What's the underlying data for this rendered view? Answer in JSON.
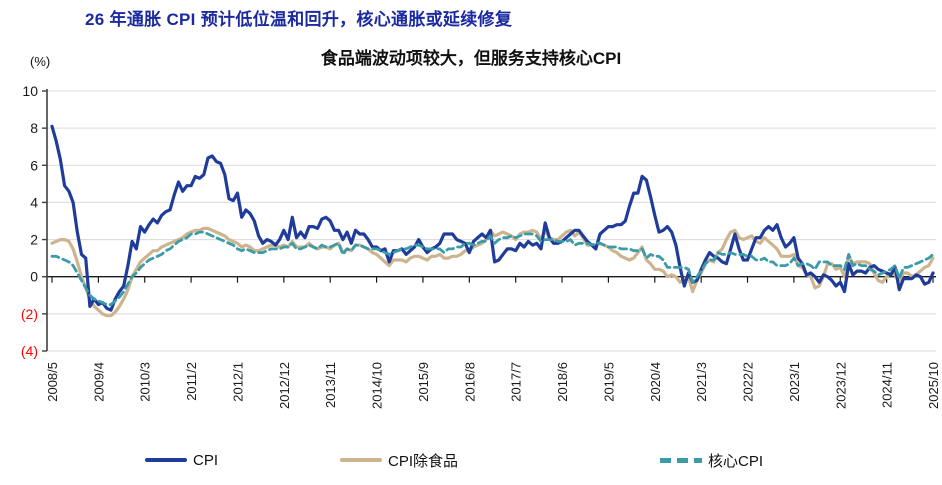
{
  "header": {
    "title": "26 年通胀 CPI 预计低位温和回升，核心通胀或延续修复",
    "title_color": "#1b2aa0"
  },
  "chart": {
    "subtitle": "食品端波动项较大，但服务支持核心CPI",
    "unit_label": "(%)",
    "grid_color": "#d9d9d9",
    "axis_color": "#404040",
    "zero_line_color": "#1a1a1a",
    "negative_label_color": "#ff0000"
  },
  "chart_data": {
    "type": "line",
    "title": "食品端波动项较大，但服务支持核心CPI",
    "xlabel": "",
    "ylabel": "(%)",
    "ylim": [
      -4,
      10
    ],
    "ytick_step": 2,
    "ytick_display": [
      "10",
      "8",
      "6",
      "4",
      "2",
      "0",
      "(2)",
      "(4)"
    ],
    "negative_tick_style": "parentheses-red",
    "grid": "horizontal",
    "legend_position": "bottom",
    "x_frequency": "monthly",
    "x_start": "2008/5",
    "x_end": "2025/10",
    "xtick_labels": [
      "2008/5",
      "2009/4",
      "2010/3",
      "2011/2",
      "2012/1",
      "2012/12",
      "2013/11",
      "2014/10",
      "2015/9",
      "2016/8",
      "2017/7",
      "2018/6",
      "2019/5",
      "2020/4",
      "2021/3",
      "2022/2",
      "2023/1",
      "2023/12",
      "2024/11",
      "2025/10"
    ],
    "xtick_month_indices": [
      0,
      11,
      22,
      33,
      44,
      55,
      66,
      77,
      88,
      99,
      110,
      121,
      132,
      143,
      154,
      165,
      176,
      187,
      198,
      209
    ],
    "series": [
      {
        "name": "CPI",
        "slug": "cpi",
        "color": "#1f3c9b",
        "style": "solid",
        "values": [
          8.1,
          7.3,
          6.3,
          4.9,
          4.6,
          4.0,
          2.4,
          1.2,
          1.0,
          -1.6,
          -1.2,
          -1.5,
          -1.4,
          -1.7,
          -1.8,
          -1.2,
          -0.8,
          -0.5,
          0.6,
          1.9,
          1.5,
          2.7,
          2.4,
          2.8,
          3.1,
          2.9,
          3.3,
          3.5,
          3.6,
          4.4,
          5.1,
          4.6,
          4.9,
          4.9,
          5.4,
          5.3,
          5.5,
          6.4,
          6.5,
          6.2,
          6.1,
          5.5,
          4.2,
          4.1,
          4.5,
          3.2,
          3.6,
          3.4,
          3.0,
          2.2,
          1.8,
          2.0,
          1.9,
          1.7,
          2.0,
          2.5,
          2.0,
          3.2,
          2.1,
          2.4,
          2.1,
          2.7,
          2.7,
          2.6,
          3.1,
          3.2,
          3.0,
          2.5,
          2.5,
          2.0,
          2.4,
          1.8,
          2.5,
          2.3,
          2.3,
          2.0,
          1.6,
          1.6,
          1.4,
          1.5,
          0.8,
          1.4,
          1.4,
          1.5,
          1.2,
          1.4,
          1.6,
          2.0,
          1.6,
          1.3,
          1.5,
          1.6,
          1.8,
          2.3,
          2.3,
          2.3,
          2.0,
          1.9,
          1.8,
          1.3,
          1.9,
          2.1,
          2.3,
          2.1,
          2.5,
          0.8,
          0.9,
          1.2,
          1.5,
          1.5,
          1.4,
          1.8,
          1.6,
          1.9,
          1.7,
          1.8,
          1.5,
          2.9,
          2.1,
          1.8,
          1.8,
          1.9,
          2.1,
          2.3,
          2.5,
          2.5,
          2.2,
          1.9,
          1.7,
          1.5,
          2.3,
          2.5,
          2.7,
          2.7,
          2.8,
          2.8,
          3.0,
          3.8,
          4.5,
          4.5,
          5.4,
          5.2,
          4.3,
          3.3,
          2.4,
          2.5,
          2.7,
          2.4,
          1.7,
          0.5,
          -0.5,
          0.2,
          -0.3,
          -0.2,
          0.4,
          0.9,
          1.3,
          1.1,
          1.0,
          0.8,
          0.7,
          1.5,
          2.3,
          1.5,
          0.9,
          0.9,
          1.5,
          2.1,
          2.1,
          2.5,
          2.7,
          2.5,
          2.8,
          2.1,
          1.6,
          1.8,
          2.1,
          1.0,
          0.7,
          0.1,
          0.2,
          0.0,
          -0.3,
          0.1,
          0.0,
          -0.2,
          -0.5,
          -0.3,
          -0.8,
          0.7,
          0.1,
          0.3,
          0.3,
          0.2,
          0.5,
          0.6,
          0.4,
          0.3,
          0.2,
          0.1,
          0.5,
          -0.7,
          -0.1,
          -0.1,
          -0.1,
          0.1,
          0.0,
          -0.4,
          -0.3,
          0.2
        ]
      },
      {
        "name": "CPI除食品",
        "slug": "cpi-ex-food",
        "color": "#cdb48e",
        "style": "solid",
        "values": [
          1.8,
          1.9,
          2.0,
          2.0,
          1.9,
          1.5,
          0.8,
          0.0,
          -0.6,
          -1.2,
          -1.6,
          -1.8,
          -2.0,
          -2.1,
          -2.1,
          -1.9,
          -1.6,
          -1.2,
          -0.7,
          0.0,
          0.4,
          0.8,
          1.0,
          1.2,
          1.4,
          1.4,
          1.6,
          1.7,
          1.8,
          1.9,
          2.0,
          2.1,
          2.3,
          2.4,
          2.5,
          2.5,
          2.6,
          2.6,
          2.5,
          2.4,
          2.3,
          2.2,
          2.0,
          1.9,
          1.8,
          1.6,
          1.7,
          1.6,
          1.4,
          1.4,
          1.5,
          1.6,
          1.7,
          1.7,
          1.6,
          1.7,
          1.6,
          1.9,
          1.6,
          1.6,
          1.6,
          1.8,
          1.6,
          1.5,
          1.6,
          1.6,
          1.5,
          1.7,
          1.8,
          1.3,
          1.5,
          1.4,
          1.7,
          1.7,
          1.6,
          1.5,
          1.3,
          1.2,
          1.0,
          0.8,
          0.6,
          0.9,
          0.9,
          0.9,
          0.8,
          1.0,
          1.1,
          1.1,
          1.0,
          0.9,
          1.1,
          1.1,
          1.2,
          1.0,
          1.0,
          1.1,
          1.1,
          1.2,
          1.4,
          1.4,
          1.6,
          1.7,
          1.8,
          2.0,
          2.5,
          2.2,
          2.3,
          2.4,
          2.3,
          2.2,
          2.0,
          2.3,
          2.4,
          2.4,
          2.5,
          2.4,
          2.0,
          2.5,
          2.1,
          2.0,
          2.0,
          2.2,
          2.4,
          2.5,
          2.2,
          2.4,
          2.1,
          1.7,
          1.7,
          1.7,
          1.8,
          1.7,
          1.6,
          1.4,
          1.3,
          1.1,
          1.0,
          0.9,
          1.0,
          1.3,
          1.6,
          0.9,
          0.7,
          0.4,
          0.4,
          0.3,
          0.0,
          0.1,
          0.0,
          -0.3,
          -0.1,
          0.0,
          -0.8,
          -0.2,
          0.2,
          0.7,
          0.9,
          0.8,
          1.3,
          1.5,
          2.0,
          2.4,
          2.5,
          2.1,
          2.0,
          2.1,
          2.2,
          1.9,
          1.8,
          2.1,
          1.9,
          1.7,
          1.5,
          1.1,
          1.1,
          1.1,
          1.2,
          0.6,
          0.5,
          0.1,
          0.0,
          -0.6,
          -0.5,
          0.0,
          0.7,
          0.7,
          0.4,
          0.5,
          0.0,
          1.1,
          0.7,
          0.8,
          0.8,
          0.8,
          0.7,
          0.2,
          -0.2,
          -0.3,
          0.0,
          0.2,
          0.1,
          -0.2,
          0.2,
          0.2,
          0.0,
          0.1,
          0.3,
          0.5,
          0.6,
          1.0
        ]
      },
      {
        "name": "核心CPI",
        "slug": "core-cpi",
        "color": "#3a9ca8",
        "style": "dashed",
        "values": [
          1.1,
          1.1,
          1.0,
          0.9,
          0.8,
          0.6,
          0.2,
          -0.2,
          -0.6,
          -1.0,
          -1.2,
          -1.3,
          -1.4,
          -1.5,
          -1.5,
          -1.3,
          -1.1,
          -0.8,
          -0.4,
          0.0,
          0.2,
          0.5,
          0.7,
          0.9,
          1.0,
          1.1,
          1.2,
          1.4,
          1.5,
          1.7,
          1.9,
          2.0,
          2.1,
          2.3,
          2.3,
          2.4,
          2.4,
          2.3,
          2.2,
          2.1,
          2.0,
          1.9,
          1.8,
          1.7,
          1.5,
          1.4,
          1.5,
          1.4,
          1.3,
          1.3,
          1.3,
          1.4,
          1.5,
          1.5,
          1.5,
          1.6,
          1.6,
          1.8,
          1.5,
          1.5,
          1.6,
          1.7,
          1.6,
          1.5,
          1.7,
          1.6,
          1.6,
          1.7,
          1.8,
          1.2,
          1.5,
          1.4,
          1.7,
          1.7,
          1.6,
          1.5,
          1.5,
          1.5,
          1.4,
          1.3,
          1.2,
          1.3,
          1.4,
          1.5,
          1.5,
          1.6,
          1.7,
          1.7,
          1.6,
          1.5,
          1.5,
          1.5,
          1.5,
          1.3,
          1.5,
          1.5,
          1.6,
          1.6,
          1.8,
          1.8,
          1.7,
          1.8,
          1.9,
          1.9,
          2.2,
          1.8,
          2.0,
          2.1,
          2.1,
          2.2,
          2.1,
          2.2,
          2.3,
          2.3,
          2.3,
          2.2,
          1.9,
          2.0,
          2.0,
          2.0,
          1.9,
          1.9,
          1.9,
          2.0,
          1.7,
          1.8,
          1.8,
          1.8,
          1.7,
          1.8,
          1.8,
          1.7,
          1.6,
          1.6,
          1.6,
          1.5,
          1.5,
          1.5,
          1.4,
          1.4,
          1.5,
          1.0,
          1.2,
          1.1,
          1.1,
          0.9,
          0.5,
          0.5,
          0.5,
          0.5,
          0.5,
          0.4,
          -0.3,
          0.0,
          0.3,
          0.7,
          0.9,
          0.9,
          1.3,
          1.2,
          1.2,
          1.3,
          1.2,
          1.2,
          1.2,
          1.1,
          1.1,
          0.9,
          0.9,
          1.0,
          0.8,
          0.8,
          0.6,
          0.6,
          0.6,
          0.7,
          1.0,
          0.6,
          0.7,
          0.7,
          0.6,
          0.4,
          0.8,
          0.8,
          0.8,
          0.6,
          0.6,
          0.6,
          0.4,
          1.2,
          0.6,
          0.7,
          0.6,
          0.6,
          0.4,
          0.3,
          0.1,
          0.2,
          0.3,
          0.4,
          0.6,
          -0.1,
          0.5,
          0.5,
          0.6,
          0.7,
          0.8,
          0.9,
          1.0,
          1.2
        ]
      }
    ]
  }
}
